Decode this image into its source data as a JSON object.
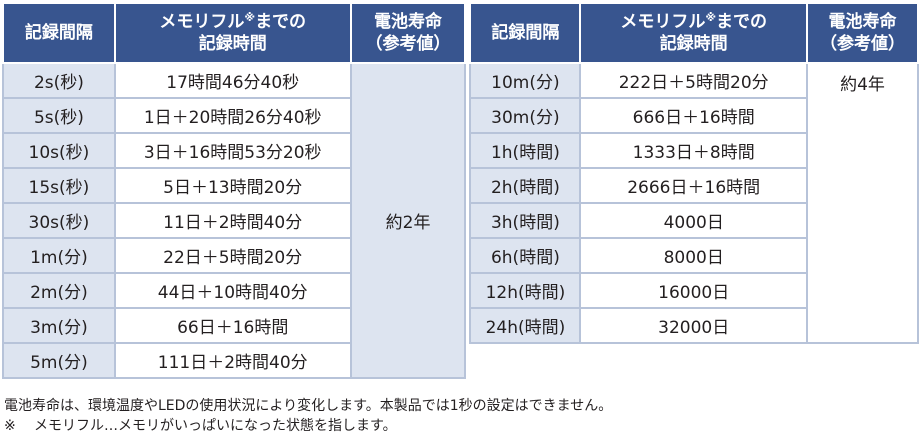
{
  "headers": {
    "interval": "記録間隔",
    "memory_full_line1": "メモリフル",
    "memory_full_mark": "※",
    "memory_full_line2": "までの",
    "memory_full_line3": "記録時間",
    "battery_line1": "電池寿命",
    "battery_line2": "（参考値）"
  },
  "left_rows": [
    {
      "interval": "2s(秒)",
      "time": "17時間46分40秒"
    },
    {
      "interval": "5s(秒)",
      "time": "1日＋20時間26分40秒"
    },
    {
      "interval": "10s(秒)",
      "time": "3日＋16時間53分20秒"
    },
    {
      "interval": "15s(秒)",
      "time": "5日＋13時間20分"
    },
    {
      "interval": "30s(秒)",
      "time": "11日＋2時間40分"
    },
    {
      "interval": "1m(分)",
      "time": "22日＋5時間20分"
    },
    {
      "interval": "2m(分)",
      "time": "44日＋10時間40分"
    },
    {
      "interval": "3m(分)",
      "time": "66日＋16時間"
    },
    {
      "interval": "5m(分)",
      "time": "111日＋2時間40分"
    }
  ],
  "left_battery": "約2年",
  "right_rows": [
    {
      "interval": "10m(分)",
      "time": "222日＋5時間20分"
    },
    {
      "interval": "30m(分)",
      "time": "666日＋16時間"
    },
    {
      "interval": "1h(時間)",
      "time": "1333日＋8時間"
    },
    {
      "interval": "2h(時間)",
      "time": "2666日＋16時間"
    },
    {
      "interval": "3h(時間)",
      "time": "4000日"
    },
    {
      "interval": "6h(時間)",
      "time": "8000日"
    },
    {
      "interval": "12h(時間)",
      "time": "16000日"
    },
    {
      "interval": "24h(時間)",
      "time": "32000日"
    }
  ],
  "right_battery": "約4年",
  "notes": {
    "line1": "電池寿命は、環境温度やLEDの使用状況により変化します。本製品では1秒の設定はできません。",
    "line2_mark": "※",
    "line2_text": "メモリフル…メモリがいっぱいになった状態を指します。"
  }
}
